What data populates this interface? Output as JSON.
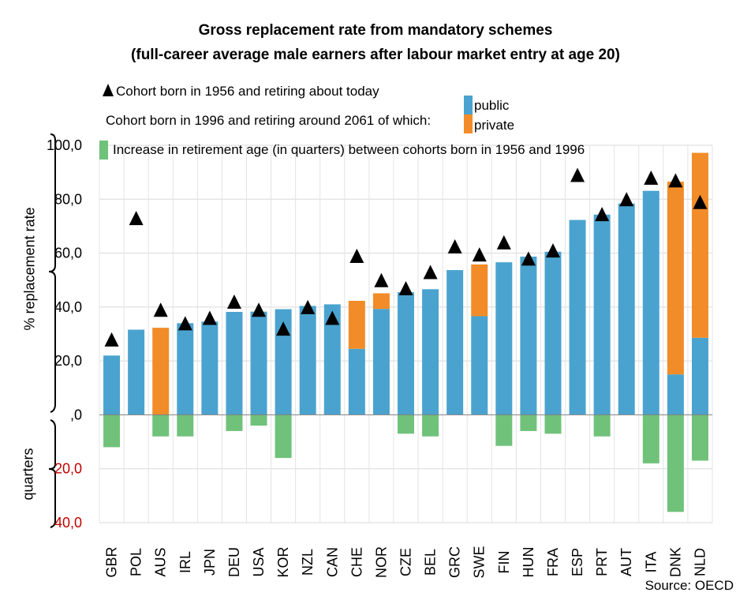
{
  "chart_data": {
    "type": "bar",
    "title": "Gross replacement rate from mandatory schemes",
    "subtitle": "(full-career average male earners after labour market entry at age 20)",
    "ylabel": "% replacement rate",
    "ylabel_lower": "quarters",
    "ylim": [
      -40,
      100
    ],
    "yticks": [
      {
        "value": 100,
        "label": "100,0",
        "color": "#000000"
      },
      {
        "value": 80,
        "label": "80,0",
        "color": "#000000"
      },
      {
        "value": 60,
        "label": "60,0",
        "color": "#000000"
      },
      {
        "value": 40,
        "label": "40,0",
        "color": "#000000"
      },
      {
        "value": 20,
        "label": "20,0",
        "color": "#000000"
      },
      {
        "value": 0,
        "label": ",0",
        "color": "#000000"
      },
      {
        "value": -20,
        "label": "20,0",
        "color": "#c00000"
      },
      {
        "value": -40,
        "label": "40,0",
        "color": "#c00000"
      }
    ],
    "grid": true,
    "categories": [
      "GBR",
      "POL",
      "AUS",
      "IRL",
      "JPN",
      "DEU",
      "USA",
      "KOR",
      "NZL",
      "CAN",
      "CHE",
      "NOR",
      "CZE",
      "BEL",
      "GRC",
      "SWE",
      "FIN",
      "HUN",
      "FRA",
      "ESP",
      "PRT",
      "AUT",
      "ITA",
      "DNK",
      "NLD"
    ],
    "series": [
      {
        "name": "public",
        "color": "#4aa3cf",
        "values": [
          22,
          31.6,
          0,
          34,
          34.6,
          38.2,
          38.3,
          39.2,
          40.4,
          41,
          24.5,
          39.3,
          45.5,
          46.6,
          53.7,
          36.6,
          56.6,
          58.7,
          60.5,
          72.3,
          74.3,
          78.4,
          83.1,
          15,
          28.6
        ]
      },
      {
        "name": "private",
        "color": "#f28c28",
        "values": [
          0,
          0,
          32.3,
          0,
          0,
          0,
          0,
          0,
          0,
          0,
          17.8,
          5.8,
          0,
          0,
          0,
          19.2,
          0,
          0,
          0,
          0,
          0,
          0,
          0,
          71.5,
          68.6
        ]
      },
      {
        "name": "Increase in retirement age (in quarters) between cohorts born in 1956 and 1996",
        "color": "#70c27a",
        "values": [
          -12,
          0,
          -8,
          -8,
          0,
          -6,
          -4,
          -16,
          0,
          0,
          0,
          0,
          -7,
          -8,
          0,
          0,
          -11.5,
          -6,
          -7,
          0,
          -8,
          0,
          -18,
          -36,
          -17
        ]
      },
      {
        "name": "Cohort born in 1956 and retiring about today",
        "marker": "triangle",
        "values": [
          28,
          73,
          39,
          34,
          36,
          42,
          39,
          32,
          40,
          36,
          59,
          50,
          47,
          53,
          62.5,
          59.5,
          64,
          58,
          61,
          89,
          74.5,
          80,
          88,
          87,
          79
        ]
      }
    ],
    "legend": {
      "triangle_label": "Cohort born in 1956 and retiring about today",
      "cohort_1996_label": "Cohort born in 1996 and retiring around 2061 of which:",
      "public_label": "public",
      "private_label": "private",
      "green_label": "Increase in retirement age (in quarters) between cohorts born in 1956 and 1996",
      "placement": "top-left"
    },
    "source": "Source: OECD"
  }
}
